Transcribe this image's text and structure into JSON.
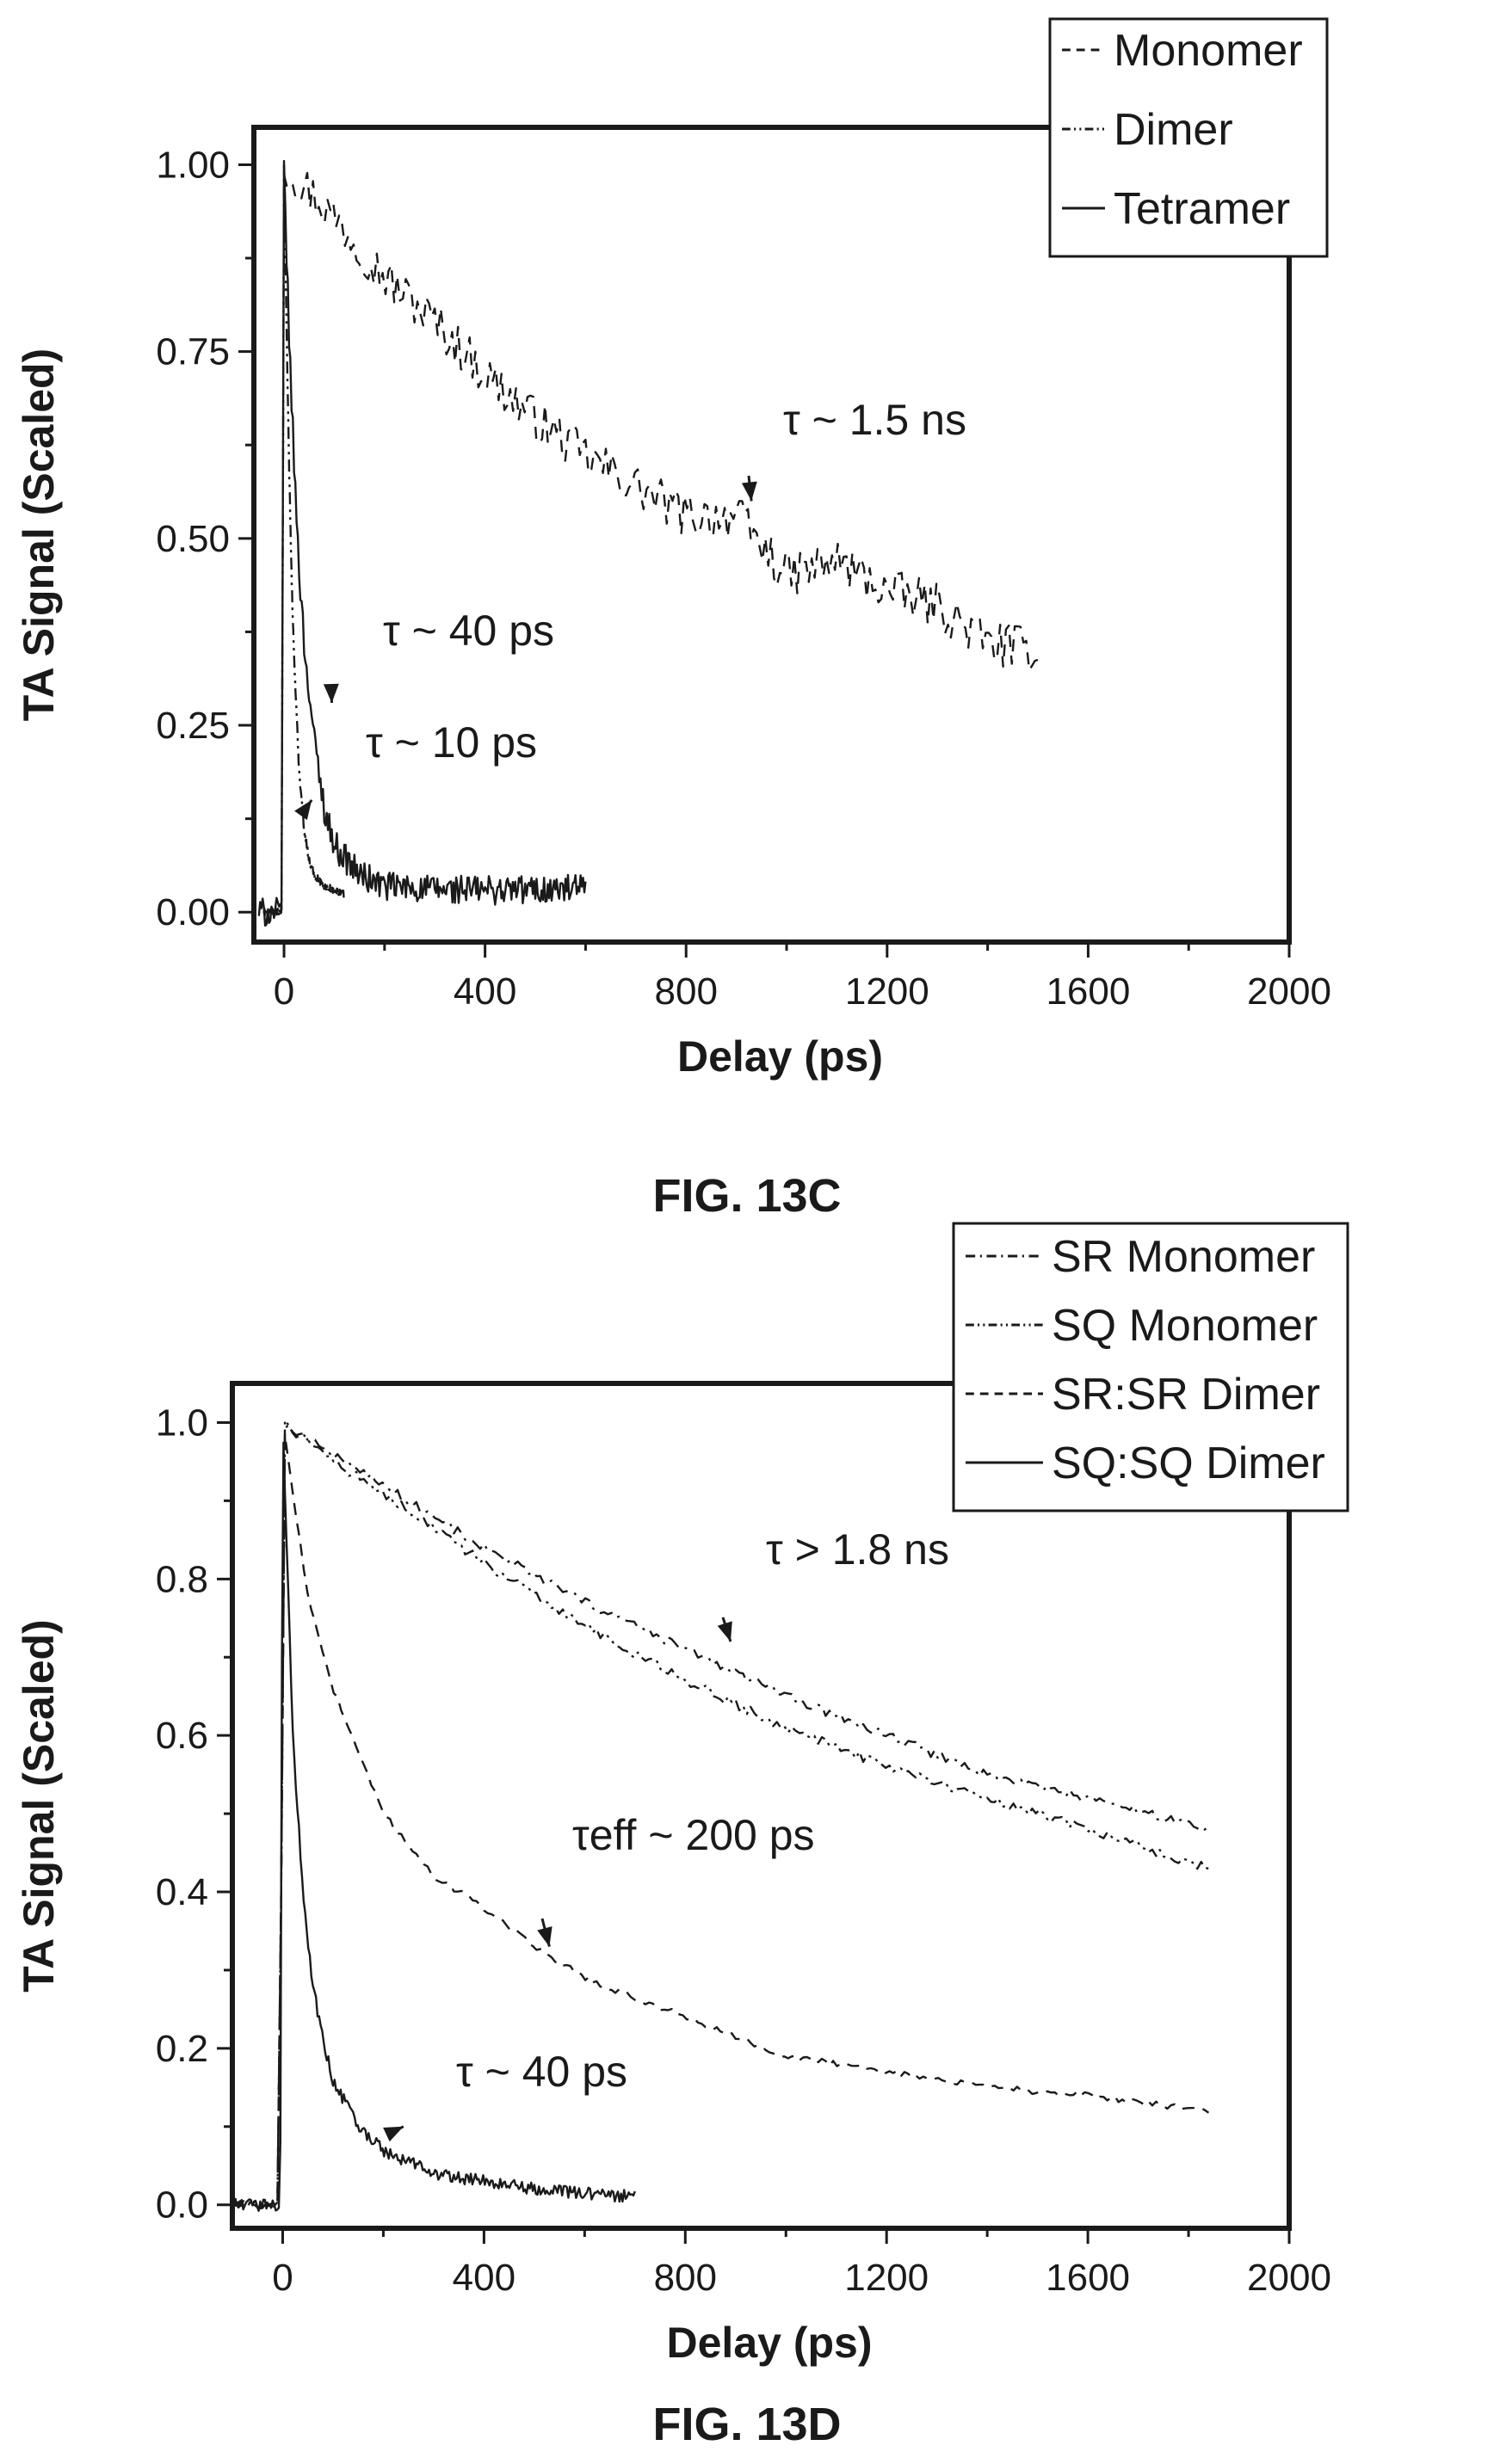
{
  "chart_data": [
    {
      "type": "line",
      "panel": "13C",
      "caption": "FIG. 13C",
      "xlabel": "Delay (ps)",
      "ylabel": "TA Signal (Scaled)",
      "xlim": [
        -60,
        2000
      ],
      "ylim": [
        -0.04,
        1.05
      ],
      "xticks": [
        0,
        400,
        800,
        1200,
        1600,
        2000
      ],
      "xtick_labels": [
        "0",
        "400",
        "800",
        "1200",
        "1600",
        "2000"
      ],
      "yticks": [
        0,
        0.25,
        0.5,
        0.75,
        1.0
      ],
      "ytick_labels": [
        "0.00",
        "0.25",
        "0.50",
        "0.75",
        "1.00"
      ],
      "grid": false,
      "legend_position": "top-right",
      "legend": [
        "Monomer",
        "Dimer",
        "Tetramer"
      ],
      "series": [
        {
          "name": "Monomer",
          "style": "dashed",
          "noise": 0.03,
          "x": [
            0,
            100,
            200,
            300,
            400,
            500,
            600,
            700,
            800,
            900,
            1000,
            1100,
            1200,
            1300,
            1400,
            1500
          ],
          "y": [
            1.0,
            0.93,
            0.85,
            0.79,
            0.72,
            0.66,
            0.61,
            0.57,
            0.53,
            0.53,
            0.45,
            0.47,
            0.43,
            0.41,
            0.36,
            0.35
          ]
        },
        {
          "name": "Dimer",
          "style": "dashdotdot",
          "noise": 0.005,
          "x": [
            -40,
            -5,
            0,
            5,
            10,
            15,
            20,
            30,
            40,
            50,
            60,
            80,
            100,
            120
          ],
          "y": [
            0.0,
            0.0,
            1.0,
            0.78,
            0.6,
            0.45,
            0.34,
            0.19,
            0.11,
            0.07,
            0.05,
            0.035,
            0.03,
            0.025
          ]
        },
        {
          "name": "Tetramer",
          "style": "solid",
          "noise": 0.02,
          "x": [
            -50,
            -5,
            0,
            10,
            20,
            30,
            40,
            60,
            80,
            100,
            150,
            200,
            300,
            400,
            500,
            600
          ],
          "y": [
            0.0,
            0.0,
            1.0,
            0.77,
            0.6,
            0.46,
            0.36,
            0.23,
            0.14,
            0.09,
            0.05,
            0.035,
            0.03,
            0.03,
            0.03,
            0.03
          ]
        }
      ],
      "annotations": [
        {
          "label": "τ ~ 1.5 ns",
          "x": 930,
          "y": 0.55
        },
        {
          "label": "τ ~ 40 ps",
          "x": 95,
          "y": 0.28
        },
        {
          "label": "τ ~ 10 ps",
          "x": 55,
          "y": 0.15
        }
      ]
    },
    {
      "type": "line",
      "panel": "13D",
      "caption": "FIG. 13D",
      "xlabel": "Delay (ps)",
      "ylabel": "TA Signal (Scaled)",
      "xlim": [
        -100,
        2000
      ],
      "ylim": [
        -0.03,
        1.05
      ],
      "xticks": [
        0,
        400,
        800,
        1200,
        1600,
        2000
      ],
      "xtick_labels": [
        "0",
        "400",
        "800",
        "1200",
        "1600",
        "2000"
      ],
      "yticks": [
        0,
        0.2,
        0.4,
        0.6,
        0.8,
        1.0
      ],
      "ytick_labels": [
        "0.0",
        "0.2",
        "0.4",
        "0.6",
        "0.8",
        "1.0"
      ],
      "grid": false,
      "legend_position": "top-right",
      "legend": [
        "SR Monomer",
        "SQ Monomer",
        "SR:SR Dimer",
        "SQ:SQ Dimer"
      ],
      "series": [
        {
          "name": "SR Monomer",
          "style": "dashdot",
          "noise": 0.006,
          "x": [
            -100,
            -5,
            0,
            100,
            200,
            400,
            600,
            800,
            1000,
            1200,
            1400,
            1600,
            1840
          ],
          "y": [
            0.0,
            0.0,
            1.0,
            0.96,
            0.92,
            0.84,
            0.77,
            0.71,
            0.65,
            0.6,
            0.55,
            0.52,
            0.48
          ]
        },
        {
          "name": "SQ Monomer",
          "style": "dashdotdot",
          "noise": 0.006,
          "x": [
            -100,
            -5,
            0,
            100,
            200,
            400,
            600,
            800,
            1000,
            1200,
            1400,
            1600,
            1840
          ],
          "y": [
            0.0,
            0.0,
            1.0,
            0.95,
            0.91,
            0.82,
            0.74,
            0.67,
            0.61,
            0.56,
            0.52,
            0.48,
            0.43
          ]
        },
        {
          "name": "SR:SR Dimer",
          "style": "dashed",
          "noise": 0.004,
          "x": [
            -100,
            -5,
            0,
            50,
            100,
            200,
            300,
            400,
            500,
            600,
            800,
            1000,
            1200,
            1400,
            1600,
            1840
          ],
          "y": [
            0.0,
            0.0,
            1.0,
            0.78,
            0.66,
            0.5,
            0.42,
            0.38,
            0.33,
            0.29,
            0.24,
            0.19,
            0.17,
            0.15,
            0.14,
            0.12
          ]
        },
        {
          "name": "SQ:SQ Dimer",
          "style": "solid",
          "noise": 0.008,
          "x": [
            -100,
            -5,
            0,
            20,
            40,
            60,
            80,
            100,
            150,
            200,
            300,
            400,
            500,
            600,
            700
          ],
          "y": [
            0.0,
            0.0,
            1.0,
            0.6,
            0.4,
            0.28,
            0.21,
            0.16,
            0.1,
            0.07,
            0.04,
            0.03,
            0.02,
            0.015,
            0.01
          ]
        }
      ],
      "annotations": [
        {
          "label": "τ > 1.8 ns",
          "x": 890,
          "y": 0.72
        },
        {
          "label": "τeff ~ 200 ps",
          "x": 530,
          "y": 0.33
        },
        {
          "label": "τ ~ 40 ps",
          "x": 240,
          "y": 0.1
        }
      ]
    }
  ]
}
